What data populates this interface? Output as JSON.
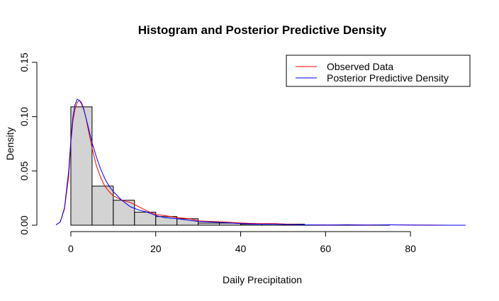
{
  "chart_data": {
    "type": "histogram",
    "title": "Histogram and Posterior Predictive Density",
    "xlabel": "Daily Precipitation",
    "ylabel": "Density",
    "xlim": [
      -5.5,
      94
    ],
    "ylim": [
      0,
      0.15
    ],
    "x_ticks": [
      0,
      20,
      40,
      60,
      80
    ],
    "x_tick_labels": [
      "0",
      "20",
      "40",
      "60",
      "80"
    ],
    "y_ticks": [
      0,
      0.05,
      0.1,
      0.15
    ],
    "y_tick_labels": [
      "0.00",
      "0.05",
      "0.10",
      "0.15"
    ],
    "grid": false,
    "legend_position": "top-right",
    "histogram": {
      "fill": "#d3d3d3",
      "stroke": "#000000",
      "breaks": [
        0,
        5,
        10,
        15,
        20,
        25,
        30,
        35,
        40,
        45,
        50,
        55,
        60,
        65,
        70,
        75
      ],
      "densities": [
        0.109,
        0.036,
        0.023,
        0.012,
        0.008,
        0.006,
        0.002,
        0.002,
        0.001,
        0.001,
        0.001,
        0.0003,
        0.0002,
        0.0001,
        0.0001
      ]
    },
    "series": [
      {
        "name": "Observed Data",
        "color": "#ff0000",
        "x": [
          -3.5,
          -2.5,
          -1.5,
          -0.5,
          0,
          0.5,
          1,
          1.5,
          2,
          2.5,
          3,
          3.5,
          4,
          5,
          6,
          7,
          8,
          9,
          10,
          12,
          14,
          16,
          18,
          20,
          22,
          25,
          28,
          30,
          33,
          36,
          40,
          44,
          48,
          52,
          55,
          60,
          65,
          70,
          75,
          80,
          85,
          90,
          93
        ],
        "y": [
          0.0003,
          0.003,
          0.015,
          0.045,
          0.075,
          0.096,
          0.107,
          0.113,
          0.115,
          0.113,
          0.108,
          0.1,
          0.09,
          0.071,
          0.055,
          0.044,
          0.036,
          0.031,
          0.027,
          0.023,
          0.021,
          0.017,
          0.013,
          0.01,
          0.009,
          0.007,
          0.006,
          0.004,
          0.0035,
          0.003,
          0.002,
          0.0015,
          0.0015,
          0.0008,
          0.0003,
          0.0002,
          0.0005,
          0.0002,
          0.0004,
          0.0001,
          0.0001,
          0.0,
          0.0
        ]
      },
      {
        "name": "Posterior Predictive Density",
        "color": "#0000ff",
        "x": [
          -3.5,
          -2.5,
          -1.5,
          -0.5,
          0,
          0.5,
          1,
          1.5,
          2,
          2.5,
          3,
          3.5,
          4,
          5,
          6,
          7,
          8,
          9,
          10,
          12,
          14,
          16,
          18,
          20,
          22,
          25,
          28,
          30,
          33,
          36,
          40,
          44,
          48,
          52,
          55,
          60,
          65,
          70,
          75,
          80,
          85,
          90,
          93
        ],
        "y": [
          0.0003,
          0.003,
          0.016,
          0.05,
          0.078,
          0.1,
          0.111,
          0.116,
          0.115,
          0.112,
          0.107,
          0.1,
          0.092,
          0.076,
          0.063,
          0.052,
          0.043,
          0.036,
          0.031,
          0.023,
          0.017,
          0.014,
          0.012,
          0.009,
          0.007,
          0.006,
          0.0045,
          0.0035,
          0.003,
          0.0025,
          0.0015,
          0.001,
          0.001,
          0.0005,
          0.0003,
          0.0002,
          0.0003,
          0.0001,
          0.0003,
          0.0001,
          0.0,
          0.0,
          0.0
        ]
      }
    ]
  }
}
